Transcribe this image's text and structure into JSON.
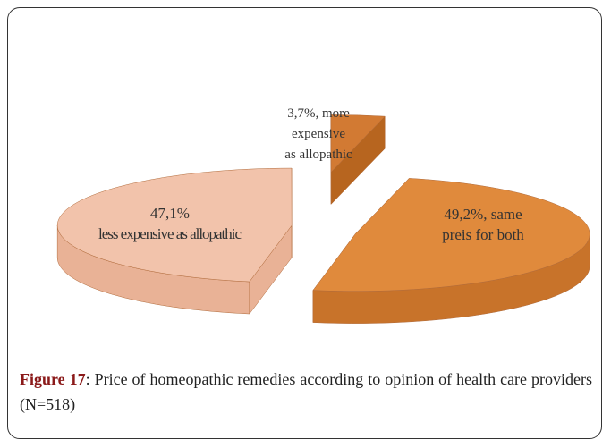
{
  "chart_data": {
    "type": "pie",
    "categories": [
      "less expensive as allopathic",
      "more expensive as allopathic",
      "same preis for both"
    ],
    "values": [
      47.1,
      3.7,
      49.2
    ],
    "value_labels": [
      "47,1%",
      "3,7%,",
      "49,2%,"
    ],
    "colors": [
      "#f2c3ab",
      "#d27a33",
      "#e08a3c"
    ],
    "side_colors": [
      "#e9b296",
      "#b7651f",
      "#c8732a"
    ]
  },
  "caption": {
    "label": "Figure 17",
    "text": ": Price of homeopathic remedies according to opinion of health care providers (N=518)"
  }
}
